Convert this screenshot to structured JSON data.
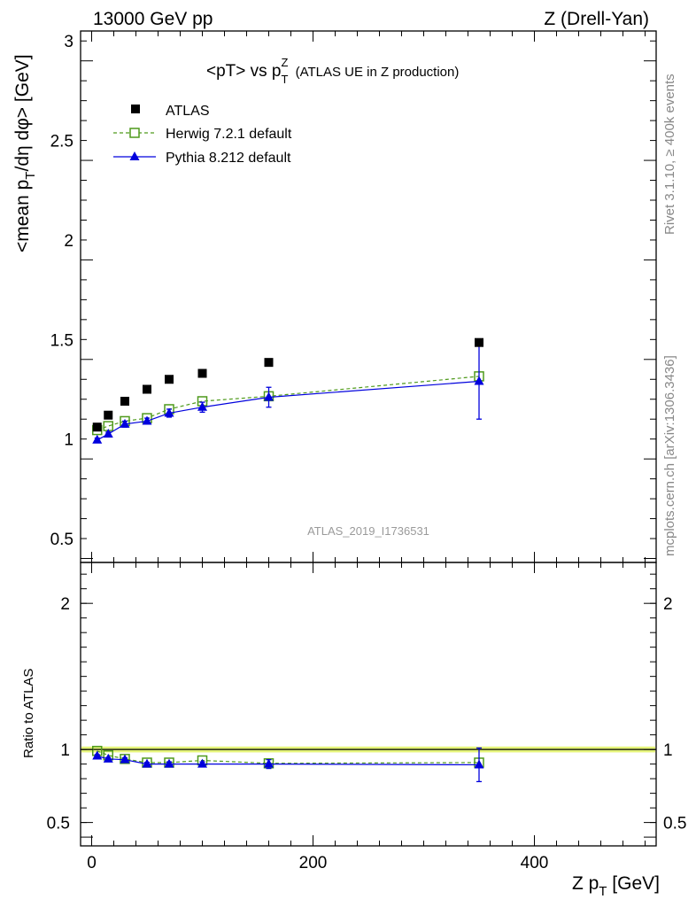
{
  "header": {
    "left_label": "13000 GeV pp",
    "right_label": "Z (Drell-Yan)"
  },
  "side_labels": {
    "rivet": "Rivet 3.1.10, ≥ 400k events",
    "mcplots": "mcplots.cern.ch [arXiv:1306.3436]"
  },
  "watermark": "ATLAS_2019_I1736531",
  "chart_data": [
    {
      "type": "scatter",
      "title_main": "<pT> vs p",
      "title_sub": "T",
      "title_sup": "Z",
      "title_tail": " (ATLAS UE in Z production)",
      "ylabel_text": "<mean p",
      "ylabel_sub": "T",
      "ylabel_tail": "/dη dφ> [GeV]",
      "xlim": [
        -10,
        510
      ],
      "ylim": [
        0.38,
        3.05
      ],
      "yticks": [
        0.5,
        1,
        1.5,
        2,
        2.5,
        3
      ],
      "ytick_labels": [
        "0.5",
        "1",
        "1.5",
        "2",
        "2.5",
        "3"
      ],
      "legend_position": "top-left",
      "series": [
        {
          "name": "ATLAS",
          "color": "#000000",
          "marker": "filled-square",
          "line": "none",
          "x": [
            5,
            15,
            30,
            50,
            70,
            100,
            160,
            350
          ],
          "y": [
            1.06,
            1.12,
            1.19,
            1.25,
            1.3,
            1.33,
            1.385,
            1.485
          ]
        },
        {
          "name": "Herwig 7.2.1 default",
          "color": "#4f9a1c",
          "marker": "open-square",
          "line": "dashed",
          "x": [
            5,
            15,
            30,
            50,
            70,
            100,
            160,
            350
          ],
          "y": [
            1.045,
            1.065,
            1.09,
            1.105,
            1.15,
            1.19,
            1.215,
            1.315
          ]
        },
        {
          "name": "Pythia 8.212 default",
          "color": "#0000dd",
          "marker": "filled-triangle",
          "line": "solid",
          "x": [
            5,
            15,
            30,
            50,
            70,
            100,
            160,
            350
          ],
          "y": [
            0.995,
            1.025,
            1.075,
            1.09,
            1.13,
            1.16,
            1.21,
            1.29
          ],
          "yerr": [
            0.01,
            0.01,
            0.015,
            0.015,
            0.02,
            0.025,
            0.05,
            0.19
          ]
        }
      ]
    },
    {
      "type": "scatter",
      "ylabel": "Ratio to ATLAS",
      "xlabel_text": "Z p",
      "xlabel_sub": "T",
      "xlabel_tail": " [GeV]",
      "xlim": [
        -10,
        510
      ],
      "ylim": [
        0.34,
        2.28
      ],
      "xticks": [
        0,
        200,
        400
      ],
      "xtick_labels": [
        "0",
        "200",
        "400"
      ],
      "yticks": [
        0.5,
        1,
        2
      ],
      "ytick_labels": [
        "0.5",
        "1",
        "2"
      ],
      "reference_band": {
        "center": 1.0,
        "half_width": 0.02,
        "color": "#e5f47a"
      },
      "series": [
        {
          "name": "Herwig 7.2.1 default",
          "color": "#4f9a1c",
          "marker": "open-square",
          "line": "dashed",
          "x": [
            5,
            15,
            30,
            50,
            70,
            100,
            160,
            350
          ],
          "y": [
            0.99,
            0.96,
            0.935,
            0.91,
            0.91,
            0.925,
            0.905,
            0.91
          ]
        },
        {
          "name": "Pythia 8.212 default",
          "color": "#0000dd",
          "marker": "filled-triangle",
          "line": "solid",
          "x": [
            5,
            15,
            30,
            50,
            70,
            100,
            160,
            350
          ],
          "y": [
            0.955,
            0.935,
            0.93,
            0.9,
            0.9,
            0.9,
            0.9,
            0.895
          ],
          "yerr": [
            0.01,
            0.01,
            0.012,
            0.012,
            0.015,
            0.015,
            0.03,
            0.115
          ]
        }
      ]
    }
  ]
}
